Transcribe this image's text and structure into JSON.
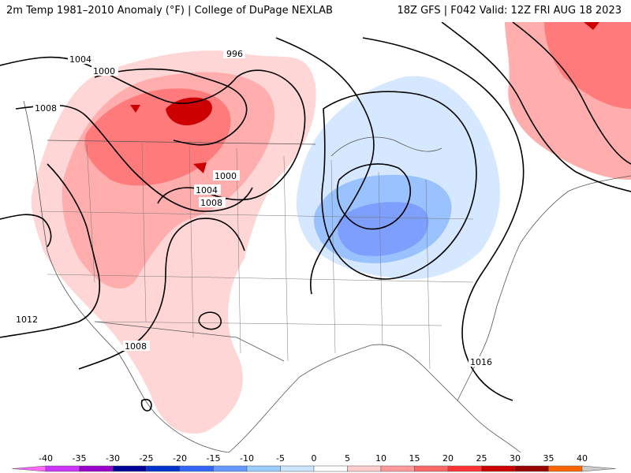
{
  "header": {
    "left_title": "2m Temp 1981–2010 Anomaly (°F) | College of DuPage NEXLAB",
    "right_title": "18Z GFS | F042 Valid: 12Z FRI AUG 18 2023"
  },
  "isobar_labels": [
    "996",
    "1000",
    "1004",
    "1008",
    "1000",
    "1004",
    "1008",
    "1012",
    "1008",
    "1016"
  ],
  "legend": {
    "ticks": [
      "-40",
      "-35",
      "-30",
      "-25",
      "-20",
      "-15",
      "-10",
      "-5",
      "0",
      "5",
      "10",
      "15",
      "20",
      "25",
      "30",
      "35",
      "40"
    ],
    "colors": [
      "#ff66ff",
      "#cc33ff",
      "#9900cc",
      "#000099",
      "#0033cc",
      "#3366ff",
      "#6699ff",
      "#99ccff",
      "#cce5ff",
      "#ffffff",
      "#ffcccc",
      "#ff9999",
      "#ff6666",
      "#ff3333",
      "#cc0000",
      "#990000",
      "#ff6600",
      "#ff9900",
      "#ffcc00",
      "#cccccc"
    ]
  },
  "colors": {
    "warm_light": "#ffd6d6",
    "warm_mid": "#ffadad",
    "warm_strong": "#ff7a7a",
    "warm_hot": "#cc0000",
    "cool_light": "#d6e8ff",
    "cool_mid": "#99c2ff",
    "cool_strong": "#7f9fff",
    "background": "#ffffff"
  }
}
